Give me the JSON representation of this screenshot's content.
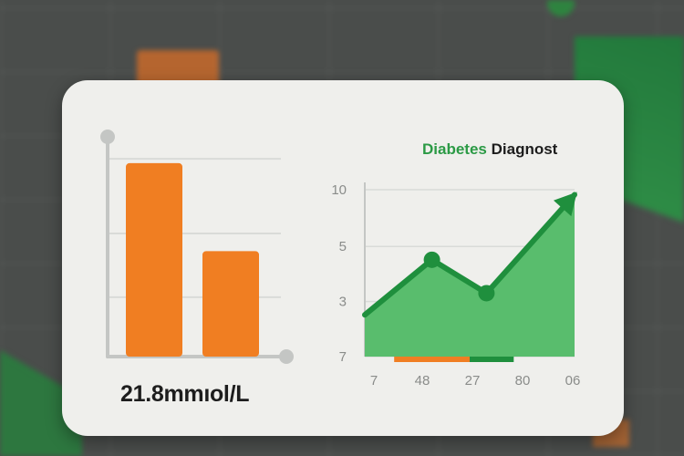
{
  "title": {
    "accent": "Diabetes",
    "rest": "Diagnost"
  },
  "value_label": "21.8mmıol/L",
  "colors": {
    "orange": "#f07e22",
    "green_fill": "#59bd6d",
    "green_line": "#1f8f3d",
    "title_accent": "#2b9a45",
    "axis": "#c4c6c4"
  },
  "chart_data": [
    {
      "type": "bar",
      "categories": [
        "",
        ""
      ],
      "values": [
        0.88,
        0.48
      ],
      "ylim": [
        0,
        1
      ],
      "grid": true,
      "color": "#f07e22"
    },
    {
      "type": "area",
      "x_tick_labels": [
        "7",
        "48",
        "27",
        "80",
        "06"
      ],
      "y_tick_labels": [
        "10",
        "5",
        "3",
        "7"
      ],
      "y_ticks": [
        {
          "label": "10",
          "level": 1.0
        },
        {
          "label": "5",
          "level": 0.66
        },
        {
          "label": "3",
          "level": 0.33
        },
        {
          "label": "7",
          "level": 0.0
        }
      ],
      "values": [
        0.25,
        0.58,
        0.38,
        0.97
      ],
      "x_positions": [
        0.0,
        0.32,
        0.58,
        1.0
      ],
      "ylim": [
        0,
        1
      ],
      "markers": [
        false,
        true,
        true,
        false
      ],
      "end_arrow": true,
      "grid": true,
      "baseline_segments": [
        {
          "from": 0.14,
          "to": 0.5,
          "color": "#f07e22"
        },
        {
          "from": 0.5,
          "to": 0.71,
          "color": "#1f8f3d"
        }
      ]
    }
  ]
}
